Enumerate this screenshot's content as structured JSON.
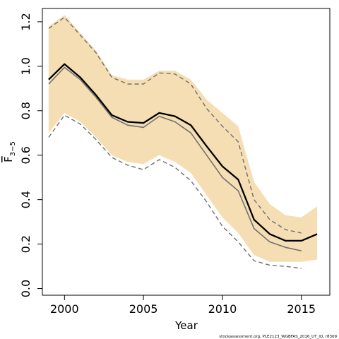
{
  "chart_data": {
    "type": "line",
    "xlabel": "Year",
    "ylabel_main": "F",
    "ylabel_sub": "3−5",
    "xlim": [
      1998.6,
      2016.8
    ],
    "ylim": [
      -0.03,
      1.26
    ],
    "x_ticks": [
      2000,
      2005,
      2010,
      2015
    ],
    "y_ticks": [
      0.0,
      0.2,
      0.4,
      0.6,
      0.8,
      1.0,
      1.2
    ],
    "y_tick_labels": [
      "0.0",
      "0.2",
      "0.4",
      "0.6",
      "0.8",
      "1.0",
      "1.2"
    ],
    "grid": false,
    "colors": {
      "band": "#f5deb3",
      "main": "#000000",
      "previous": "#707070",
      "previous_ci": "#707070"
    },
    "series": [
      {
        "role": "uncertainty_band",
        "x": [
          1999,
          2000,
          2001,
          2002,
          2003,
          2004,
          2005,
          2006,
          2007,
          2008,
          2009,
          2010,
          2011,
          2012,
          2013,
          2014,
          2015,
          2016
        ],
        "lower": [
          0.7,
          0.79,
          0.75,
          0.68,
          0.6,
          0.57,
          0.56,
          0.6,
          0.57,
          0.52,
          0.42,
          0.32,
          0.25,
          0.15,
          0.12,
          0.12,
          0.12,
          0.13
        ],
        "upper": [
          1.18,
          1.23,
          1.15,
          1.07,
          0.96,
          0.94,
          0.94,
          0.98,
          0.98,
          0.94,
          0.85,
          0.79,
          0.73,
          0.48,
          0.38,
          0.33,
          0.32,
          0.37
        ]
      },
      {
        "role": "main",
        "x": [
          1999,
          2000,
          2001,
          2002,
          2003,
          2004,
          2005,
          2006,
          2007,
          2008,
          2009,
          2010,
          2011,
          2012,
          2013,
          2014,
          2015,
          2016
        ],
        "values": [
          0.94,
          1.01,
          0.95,
          0.87,
          0.78,
          0.75,
          0.745,
          0.79,
          0.775,
          0.735,
          0.64,
          0.55,
          0.49,
          0.31,
          0.245,
          0.215,
          0.215,
          0.245
        ]
      },
      {
        "role": "previous",
        "x": [
          1999,
          2000,
          2001,
          2002,
          2003,
          2004,
          2005,
          2006,
          2007,
          2008,
          2009,
          2010,
          2011,
          2012,
          2013,
          2014,
          2015
        ],
        "values": [
          0.92,
          0.995,
          0.94,
          0.86,
          0.77,
          0.735,
          0.725,
          0.775,
          0.75,
          0.7,
          0.6,
          0.5,
          0.44,
          0.27,
          0.21,
          0.185,
          0.17
        ]
      },
      {
        "role": "previous_upper",
        "x": [
          1999,
          2000,
          2001,
          2002,
          2003,
          2004,
          2005,
          2006,
          2007,
          2008,
          2009,
          2010,
          2011,
          2012,
          2013,
          2014,
          2015
        ],
        "values": [
          1.17,
          1.22,
          1.14,
          1.06,
          0.95,
          0.92,
          0.92,
          0.97,
          0.965,
          0.92,
          0.81,
          0.73,
          0.66,
          0.4,
          0.31,
          0.265,
          0.25
        ]
      },
      {
        "role": "previous_lower",
        "x": [
          1999,
          2000,
          2001,
          2002,
          2003,
          2004,
          2005,
          2006,
          2007,
          2008,
          2009,
          2010,
          2011,
          2012,
          2013,
          2014,
          2015
        ],
        "values": [
          0.68,
          0.78,
          0.74,
          0.67,
          0.59,
          0.555,
          0.535,
          0.58,
          0.545,
          0.485,
          0.39,
          0.28,
          0.21,
          0.125,
          0.105,
          0.1,
          0.09
        ]
      }
    ]
  },
  "footer": "stockassessment.org, PLE2123_WGBFAS_2016_UT_IQ, r8309"
}
